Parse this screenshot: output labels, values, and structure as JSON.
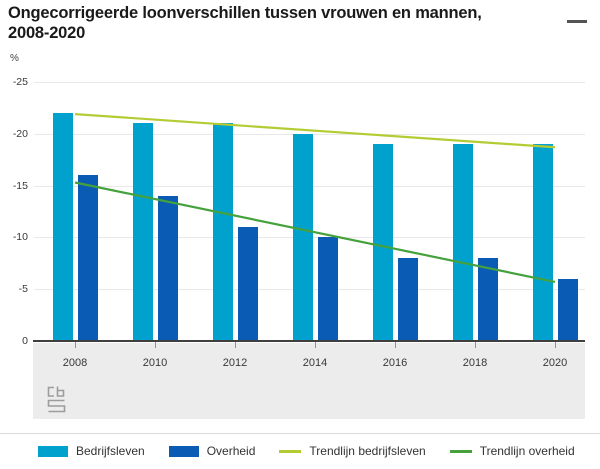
{
  "header": {
    "title_line1": "Ongecorrigeerde loonverschillen tussen vrouwen en mannen,",
    "title_line2": "2008-2020"
  },
  "chart_data": {
    "type": "bar",
    "title": "Ongecorrigeerde loonverschillen tussen vrouwen en mannen, 2008-2020",
    "unit_label": "%",
    "categories": [
      "2008",
      "2010",
      "2012",
      "2014",
      "2016",
      "2018",
      "2020"
    ],
    "series": [
      {
        "name": "Bedrijfsleven",
        "color": "#00a1cd",
        "values": [
          -22,
          -21,
          -21,
          -20,
          -19,
          -19,
          -19
        ]
      },
      {
        "name": "Overheid",
        "color": "#0a5bb4",
        "values": [
          -16,
          -14,
          -11,
          -10,
          -8,
          -8,
          -6
        ]
      }
    ],
    "trendlines": [
      {
        "name": "Trendlijn bedrijfsleven",
        "color": "#b4cc33",
        "start_value": -21.9,
        "end_value": -18.7
      },
      {
        "name": "Trendlijn overheid",
        "color": "#45a13c",
        "start_value": -15.3,
        "end_value": -5.7
      }
    ],
    "y_axis": {
      "label": "%",
      "min": -25,
      "max": 0,
      "ticks": [
        "-25",
        "-20",
        "-15",
        "-10",
        "-5",
        "0"
      ],
      "grid": true
    },
    "legend_position": "bottom",
    "colors": {
      "grid": "#e8e8e8",
      "zero_line": "#3f3f3f",
      "axis_band": "#ececec",
      "text": "#383838"
    }
  },
  "footer": {
    "logo_name": "cbs-logo"
  }
}
